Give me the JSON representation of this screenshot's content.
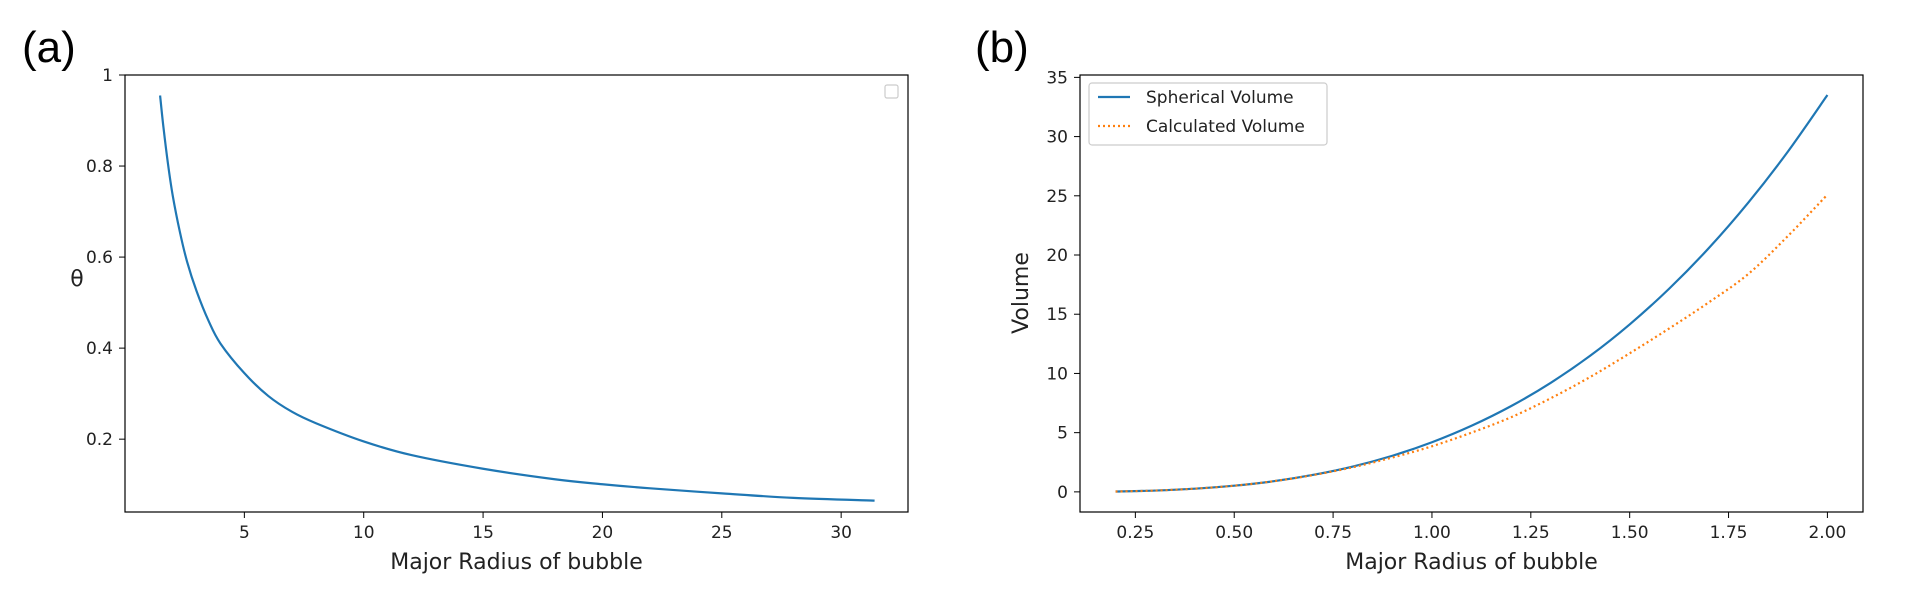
{
  "chart_data": [
    {
      "panel_label": "(a)",
      "type": "line",
      "title": "",
      "xlabel": "Major Radius of bubble",
      "ylabel": "θ",
      "xlim": [
        0.0,
        32.8
      ],
      "ylim": [
        0.04,
        1.0
      ],
      "xticks": [
        5,
        10,
        15,
        20,
        25,
        30
      ],
      "yticks": [
        0.2,
        0.4,
        0.6,
        0.8,
        1.0
      ],
      "grid": false,
      "legend": {
        "position": "top-right",
        "entries": []
      },
      "series": [
        {
          "color": "#1f77b4",
          "style": "solid",
          "x": [
            1.47,
            1.6,
            1.8,
            2.0,
            2.3,
            2.6,
            3.0,
            3.5,
            4.0,
            5.0,
            6.0,
            7.0,
            8.0,
            10.0,
            12.0,
            15.0,
            18.0,
            20.0,
            22.0,
            25.0,
            28.0,
            31.4
          ],
          "y": [
            0.955,
            0.89,
            0.805,
            0.735,
            0.655,
            0.59,
            0.525,
            0.46,
            0.41,
            0.345,
            0.295,
            0.26,
            0.235,
            0.195,
            0.165,
            0.135,
            0.112,
            0.101,
            0.092,
            0.081,
            0.071,
            0.065
          ]
        }
      ]
    },
    {
      "panel_label": "(b)",
      "type": "line",
      "title": "",
      "xlabel": "Major Radius of bubble",
      "ylabel": "Volume",
      "xlim": [
        0.11,
        2.09
      ],
      "ylim": [
        -1.7,
        35.2
      ],
      "xticks": [
        "0.25",
        "0.50",
        "0.75",
        "1.00",
        "1.25",
        "1.50",
        "1.75",
        "2.00"
      ],
      "yticks": [
        0,
        5,
        10,
        15,
        20,
        25,
        30,
        35
      ],
      "grid": false,
      "legend": {
        "position": "top-left",
        "entries": [
          "Spherical Volume",
          "Calculated Volume"
        ]
      },
      "series": [
        {
          "name": "Spherical Volume",
          "color": "#1f77b4",
          "style": "solid",
          "x": [
            0.2,
            0.3,
            0.4,
            0.5,
            0.6,
            0.7,
            0.8,
            0.9,
            1.0,
            1.1,
            1.2,
            1.3,
            1.4,
            1.5,
            1.6,
            1.7,
            1.8,
            1.9,
            2.0
          ],
          "y": [
            0.03,
            0.11,
            0.27,
            0.52,
            0.9,
            1.44,
            2.14,
            3.05,
            4.19,
            5.58,
            7.24,
            9.2,
            11.49,
            14.14,
            17.16,
            20.58,
            24.43,
            28.73,
            33.51
          ]
        },
        {
          "name": "Calculated Volume",
          "color": "#ff7f0e",
          "style": "dotted",
          "x": [
            0.2,
            0.3,
            0.4,
            0.5,
            0.6,
            0.7,
            0.8,
            0.9,
            1.0,
            1.1,
            1.2,
            1.3,
            1.4,
            1.5,
            1.6,
            1.7,
            1.8,
            1.9,
            2.0
          ],
          "y": [
            0.03,
            0.11,
            0.27,
            0.52,
            0.9,
            1.42,
            2.08,
            2.9,
            3.85,
            5.0,
            6.3,
            7.9,
            9.7,
            11.7,
            13.8,
            16.0,
            18.4,
            21.6,
            25.1
          ]
        }
      ]
    }
  ]
}
